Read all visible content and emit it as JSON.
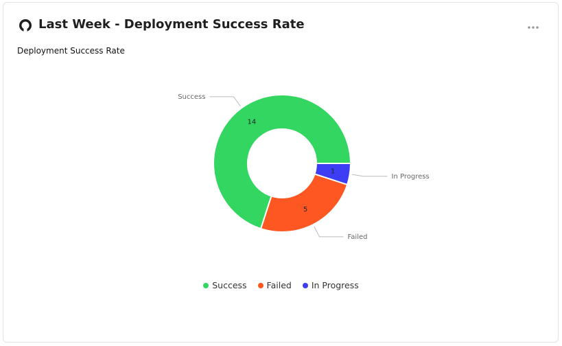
{
  "header": {
    "title": "Last Week - Deployment Success Rate"
  },
  "chart_data": {
    "type": "donut",
    "title": "Deployment Success Rate",
    "categories": [
      "Success",
      "Failed",
      "In Progress"
    ],
    "values": [
      14,
      5,
      1
    ],
    "colors": [
      "#34d662",
      "#fe5722",
      "#3d3df5"
    ]
  }
}
